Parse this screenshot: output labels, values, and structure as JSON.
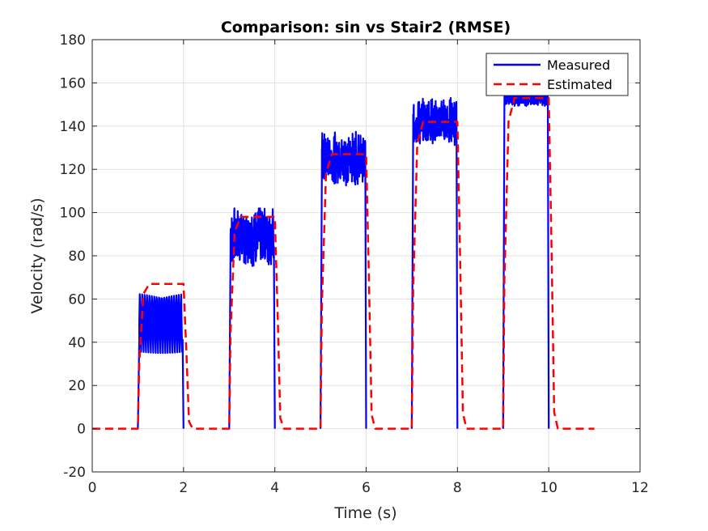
{
  "chart_data": {
    "type": "line",
    "title": "Comparison: sin vs Stair2 (RMSE)",
    "xlabel": "Time (s)",
    "ylabel": "Velocity (rad/s)",
    "xlim": [
      0,
      12
    ],
    "ylim": [
      -20,
      180
    ],
    "xticks": [
      0,
      2,
      4,
      6,
      8,
      10,
      12
    ],
    "yticks": [
      -20,
      0,
      20,
      40,
      60,
      80,
      100,
      120,
      140,
      160,
      180
    ],
    "grid": true,
    "legend_position": "top-right",
    "series": [
      {
        "name": "Measured",
        "color": "#0000ff",
        "style": "solid",
        "steps": [
          {
            "start": 1.0,
            "end": 2.0,
            "mean": 49,
            "amplitude": 14
          },
          {
            "start": 3.0,
            "end": 4.0,
            "mean": 89,
            "amplitude": 11
          },
          {
            "start": 5.0,
            "end": 6.0,
            "mean": 125,
            "amplitude": 10
          },
          {
            "start": 7.0,
            "end": 8.0,
            "mean": 142,
            "amplitude": 9
          },
          {
            "start": 9.0,
            "end": 10.0,
            "mean": 153,
            "amplitude": 3
          }
        ]
      },
      {
        "name": "Estimated",
        "color": "#ff0000",
        "style": "dashed",
        "x_range": [
          0,
          11
        ],
        "steps": [
          {
            "start": 1.0,
            "end": 2.0,
            "level": 67
          },
          {
            "start": 3.0,
            "end": 4.0,
            "level": 98
          },
          {
            "start": 5.0,
            "end": 6.0,
            "level": 127
          },
          {
            "start": 7.0,
            "end": 8.0,
            "level": 142
          },
          {
            "start": 9.0,
            "end": 10.0,
            "level": 153
          }
        ]
      }
    ]
  }
}
